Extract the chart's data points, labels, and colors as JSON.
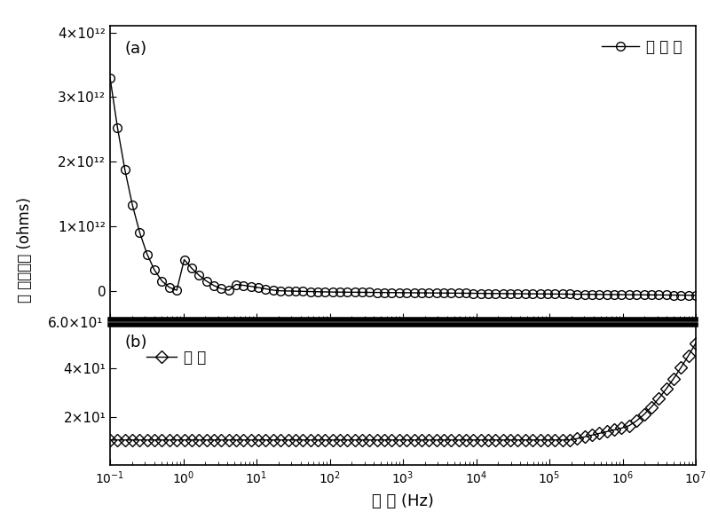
{
  "title_a": "(a)",
  "title_b": "(b)",
  "xlabel": "频 率 (Hz)",
  "ylabel": "阻 抗最大値 (ohms)",
  "legend_a": "样 品 腔",
  "legend_b": "导 线",
  "freq_min": 0.1,
  "freq_max": 10000000.0,
  "panel_a_ylim": [
    -450000000000.0,
    4100000000000.0
  ],
  "panel_b_ylim": [
    0,
    58.0
  ],
  "panel_a_yticks": [
    0,
    1000000000000.0,
    2000000000000.0,
    3000000000000.0,
    4000000000000.0
  ],
  "panel_b_yticks": [
    20.0,
    40.0
  ],
  "divider_label": "6.0×10¹",
  "line_color": "black",
  "marker_color": "black",
  "bg_color": "white"
}
